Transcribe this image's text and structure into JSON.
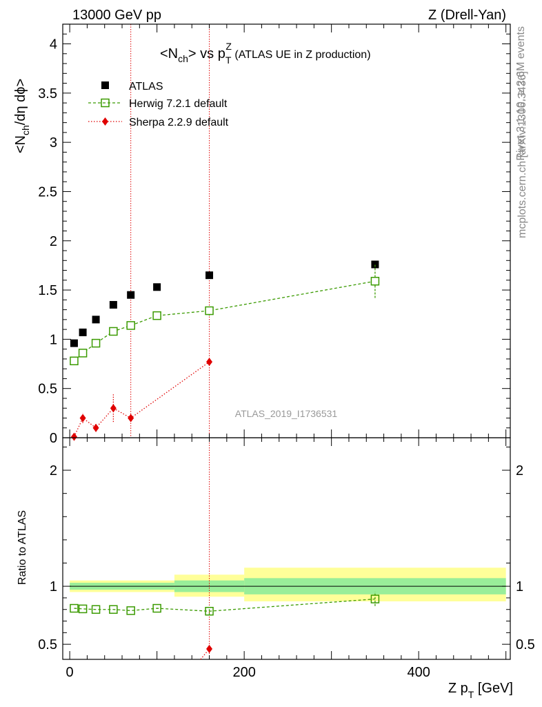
{
  "header": {
    "left": "13000 GeV pp",
    "right": "Z (Drell-Yan)"
  },
  "title": {
    "main": "<N",
    "main_sub": "ch",
    "main_mid": "> vs p",
    "main_sup": "Z",
    "main_sub2": "T",
    "main_tail": " (ATLAS UE in Z production)"
  },
  "side_labels": {
    "rivet": "Rivet 3.1.10, ≥ 2.6M events",
    "mcplots": "mcplots.cern.ch [arXiv:1306.3436]"
  },
  "watermark": "ATLAS_2019_I1736531",
  "axes": {
    "top_ylabel_parts": [
      "<N",
      "ch",
      "/dη dϕ>"
    ],
    "bottom_ylabel": "Ratio to ATLAS",
    "xlabel_parts": [
      "Z p",
      "T",
      " [GeV]"
    ]
  },
  "legend": [
    {
      "label": "ATLAS",
      "marker": "square-filled",
      "color": "#000000"
    },
    {
      "label": "Herwig 7.2.1 default",
      "marker": "square-open",
      "color": "#3a9a00"
    },
    {
      "label": "Sherpa 2.2.9 default",
      "marker": "diamond",
      "color": "#e00000"
    }
  ],
  "chart_data": [
    {
      "type": "scatter",
      "panel": "main",
      "ylim": [
        0,
        4.2
      ],
      "xlim": [
        -8,
        505
      ],
      "yticks": [
        "0",
        "0.5",
        "1",
        "1.5",
        "2",
        "2.5",
        "3",
        "3.5",
        "4"
      ],
      "series": [
        {
          "name": "ATLAS",
          "x": [
            5,
            15,
            30,
            50,
            70,
            100,
            160,
            350
          ],
          "y": [
            0.96,
            1.07,
            1.2,
            1.35,
            1.45,
            1.53,
            1.65,
            1.76
          ]
        },
        {
          "name": "Herwig 7.2.1 default",
          "x": [
            5,
            15,
            30,
            50,
            70,
            100,
            160,
            350
          ],
          "y": [
            0.78,
            0.86,
            0.96,
            1.08,
            1.14,
            1.24,
            1.29,
            1.59
          ],
          "yerr": [
            0,
            0,
            0,
            0,
            0,
            0,
            0.05,
            0.17
          ]
        },
        {
          "name": "Sherpa 2.2.9 default",
          "x": [
            5,
            15,
            30,
            50,
            70,
            160
          ],
          "y": [
            0.01,
            0.2,
            0.1,
            0.3,
            0.2,
            0.77
          ],
          "yerr": [
            0,
            0.05,
            0.04,
            0.14,
            0,
            0
          ]
        }
      ],
      "vlines_x": [
        70,
        160
      ]
    },
    {
      "type": "scatter",
      "panel": "ratio",
      "ylim": [
        0.37,
        2.28
      ],
      "xlim": [
        -8,
        505
      ],
      "yticks": [
        "0.5",
        "1",
        "2"
      ],
      "xticks": [
        "0",
        "200",
        "400"
      ],
      "bands": [
        {
          "x0": 0,
          "x1": 120,
          "inner": [
            0.97,
            1.03
          ],
          "outer": [
            0.95,
            1.05
          ]
        },
        {
          "x0": 120,
          "x1": 200,
          "inner": [
            0.95,
            1.05
          ],
          "outer": [
            0.91,
            1.1
          ]
        },
        {
          "x0": 200,
          "x1": 500,
          "inner": [
            0.93,
            1.07
          ],
          "outer": [
            0.87,
            1.16
          ]
        }
      ],
      "series": [
        {
          "name": "Herwig 7.2.1 default",
          "x": [
            5,
            15,
            30,
            50,
            70,
            100,
            160,
            350
          ],
          "y": [
            0.81,
            0.805,
            0.8,
            0.8,
            0.79,
            0.81,
            0.785,
            0.89
          ],
          "yerr": [
            0,
            0,
            0,
            0,
            0,
            0,
            0.03,
            0.06
          ]
        },
        {
          "name": "Sherpa 2.2.9 default",
          "x": [
            160
          ],
          "y": [
            0.46
          ],
          "yerr": [
            0
          ]
        }
      ]
    }
  ],
  "colors": {
    "data": "#000000",
    "herwig": "#3a9a00",
    "sherpa": "#e00000",
    "band_inner": "#99ee99",
    "band_outer": "#ffff99"
  }
}
